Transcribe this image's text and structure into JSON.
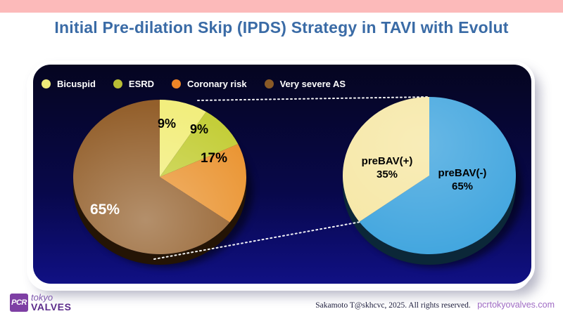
{
  "slide": {
    "title": "Initial Pre-dilation Skip (IPDS) Strategy in TAVI with Evolut",
    "title_color": "#3a6ba6",
    "top_bar_color": "#fcbaba",
    "panel_bg_top": "#050520",
    "panel_bg_bottom": "#101084"
  },
  "legend": {
    "items": [
      {
        "label": "Bicuspid",
        "color": "#eeeb7a"
      },
      {
        "label": "ESRD",
        "color": "#b8bd35"
      },
      {
        "label": "Coronary risk",
        "color": "#ed8527"
      },
      {
        "label": "Very severe AS",
        "color": "#8a5a26"
      }
    ]
  },
  "chart_data": [
    {
      "type": "pie",
      "name": "prebav-positive-breakdown-pie",
      "description": "Reasons in the preBAV(+) group",
      "labels": [
        "Bicuspid",
        "ESRD",
        "Coronary risk",
        "Very severe AS"
      ],
      "values": [
        9,
        9,
        17,
        65
      ],
      "unit": "%",
      "colors": [
        "#f2ee7e",
        "#c4ce39",
        "#ea9431",
        "#935f2b"
      ],
      "label_texts": [
        "9%",
        "9%",
        "17%",
        "65%"
      ],
      "label_colors": [
        "#000000",
        "#000000",
        "#000000",
        "#ffffff"
      ],
      "start_angle_deg": 0,
      "direction": "clockwise",
      "style": "3d",
      "legend_position": "top-left"
    },
    {
      "type": "pie",
      "name": "prebav-pie",
      "description": "Use of initial balloon pre-dilation",
      "labels": [
        "preBAV(-)",
        "preBAV(+)"
      ],
      "values": [
        65,
        35
      ],
      "unit": "%",
      "colors": [
        "#3ea4de",
        "#f6e7a4"
      ],
      "label_texts": [
        "preBAV(-)\n65%",
        "preBAV(+)\n35%"
      ],
      "label_colors": [
        "#000000",
        "#000000"
      ],
      "start_angle_deg": 0,
      "direction": "clockwise",
      "style": "3d"
    }
  ],
  "footer": {
    "logo": {
      "square_text": "PCR",
      "line1": "tokyo",
      "line2": "VALVES",
      "brand_purple": "#5b2b8a"
    },
    "attribution": "Sakamoto T@skhcvc, 2025. All rights reserved.",
    "website": "pcrtokyovalves.com",
    "website_color": "#a06cc4"
  }
}
